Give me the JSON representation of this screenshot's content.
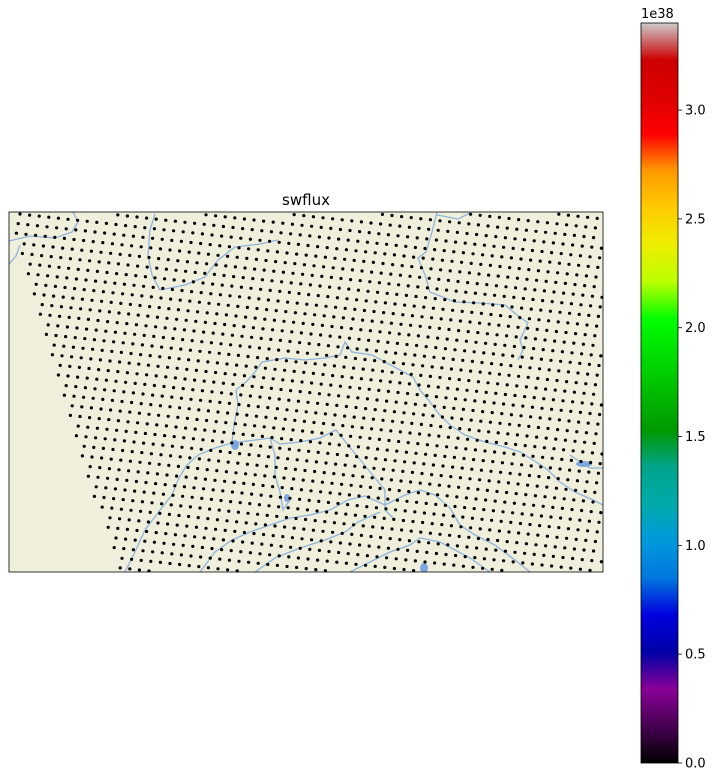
{
  "map": {
    "title": "swflux",
    "land_color": "#efefdb",
    "river_color": "#8fb4dc",
    "lake_color": "#7ba6e0",
    "point_color": "#000000",
    "points": "regular grid of station markers (all near 0.0)"
  },
  "colorbar": {
    "colormap": "nipy_spectral",
    "multiplier": "1e38",
    "range": [
      0.0,
      3.4
    ],
    "ticks": [
      {
        "value": 0.0,
        "label": "0.0"
      },
      {
        "value": 0.5,
        "label": "0.5"
      },
      {
        "value": 1.0,
        "label": "1.0"
      },
      {
        "value": 1.5,
        "label": "1.5"
      },
      {
        "value": 2.0,
        "label": "2.0"
      },
      {
        "value": 2.5,
        "label": "2.5"
      },
      {
        "value": 3.0,
        "label": "3.0"
      }
    ]
  }
}
